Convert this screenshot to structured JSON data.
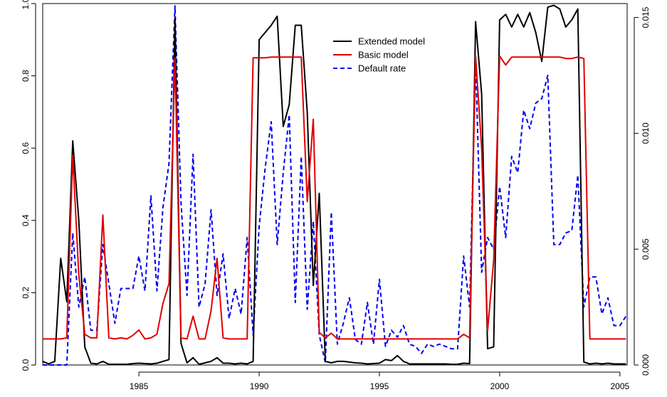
{
  "chart_data": {
    "type": "line",
    "x_axis": {
      "range": [
        1981,
        2005.3
      ],
      "ticks": [
        1985,
        1990,
        1995,
        2000,
        2005
      ]
    },
    "y_left": {
      "range": [
        0,
        1
      ],
      "ticks": [
        "0.0",
        "0.2",
        "0.4",
        "0.6",
        "0.8",
        "1.0"
      ],
      "tick_values": [
        0,
        0.2,
        0.4,
        0.6,
        0.8,
        1.0
      ]
    },
    "y_right": {
      "range": [
        0,
        0.0156
      ],
      "ticks": [
        "0.000",
        "0.005",
        "0.010",
        "0.015"
      ],
      "tick_values": [
        0,
        0.005,
        0.01,
        0.015
      ]
    },
    "legend": {
      "position": "top-center",
      "entries": [
        {
          "label": "Extended model",
          "color": "#000000",
          "dash": "solid"
        },
        {
          "label": "Basic model",
          "color": "#e00000",
          "dash": "solid"
        },
        {
          "label": "Default rate",
          "color": "#0000ee",
          "dash": "dashed"
        }
      ]
    },
    "series": [
      {
        "name": "Extended model",
        "axis": "left",
        "color": "#000000",
        "dash": "solid",
        "x": [
          1981.0,
          1981.25,
          1981.5,
          1981.75,
          1982.0,
          1982.25,
          1982.5,
          1982.75,
          1983.0,
          1983.25,
          1983.5,
          1983.75,
          1984.0,
          1984.25,
          1984.5,
          1984.75,
          1985.0,
          1985.25,
          1985.5,
          1985.75,
          1986.0,
          1986.25,
          1986.5,
          1986.75,
          1987.0,
          1987.25,
          1987.5,
          1987.75,
          1988.0,
          1988.25,
          1988.5,
          1988.75,
          1989.0,
          1989.25,
          1989.5,
          1989.75,
          1990.0,
          1990.25,
          1990.5,
          1990.75,
          1991.0,
          1991.25,
          1991.5,
          1991.75,
          1992.0,
          1992.25,
          1992.5,
          1992.75,
          1993.0,
          1993.25,
          1993.5,
          1993.75,
          1994.0,
          1994.25,
          1994.5,
          1994.75,
          1995.0,
          1995.25,
          1995.5,
          1995.75,
          1996.0,
          1996.25,
          1996.5,
          1996.75,
          1997.0,
          1997.25,
          1997.5,
          1997.75,
          1998.0,
          1998.25,
          1998.5,
          1998.75,
          1999.0,
          1999.25,
          1999.5,
          1999.75,
          2000.0,
          2000.25,
          2000.5,
          2000.75,
          2001.0,
          2001.25,
          2001.5,
          2001.75,
          2002.0,
          2002.25,
          2002.5,
          2002.75,
          2003.0,
          2003.25,
          2003.5,
          2003.75,
          2004.0,
          2004.25,
          2004.5,
          2004.75,
          2005.0,
          2005.25
        ],
        "values": [
          0.01,
          0.003,
          0.01,
          0.295,
          0.175,
          0.62,
          0.4,
          0.05,
          0.005,
          0.003,
          0.01,
          0.002,
          0.002,
          0.002,
          0.002,
          0.004,
          0.005,
          0.004,
          0.003,
          0.005,
          0.01,
          0.015,
          0.96,
          0.06,
          0.006,
          0.02,
          0.002,
          0.006,
          0.01,
          0.02,
          0.005,
          0.005,
          0.003,
          0.005,
          0.003,
          0.01,
          0.9,
          0.92,
          0.94,
          0.965,
          0.66,
          0.72,
          0.94,
          0.94,
          0.7,
          0.22,
          0.475,
          0.01,
          0.006,
          0.01,
          0.01,
          0.008,
          0.006,
          0.005,
          0.003,
          0.004,
          0.005,
          0.015,
          0.012,
          0.026,
          0.01,
          0.003,
          0.003,
          0.003,
          0.003,
          0.003,
          0.003,
          0.003,
          0.002,
          0.002,
          0.005,
          0.004,
          0.95,
          0.75,
          0.045,
          0.05,
          0.955,
          0.97,
          0.935,
          0.97,
          0.935,
          0.975,
          0.92,
          0.84,
          0.99,
          0.995,
          0.985,
          0.935,
          0.955,
          0.985,
          0.008,
          0.003,
          0.005,
          0.003,
          0.005,
          0.003,
          0.003,
          0.003
        ]
      },
      {
        "name": "Basic model",
        "axis": "left",
        "color": "#e00000",
        "dash": "solid",
        "x": [
          1981.0,
          1981.25,
          1981.5,
          1981.75,
          1982.0,
          1982.25,
          1982.5,
          1982.75,
          1983.0,
          1983.25,
          1983.5,
          1983.75,
          1984.0,
          1984.25,
          1984.5,
          1984.75,
          1985.0,
          1985.25,
          1985.5,
          1985.75,
          1986.0,
          1986.25,
          1986.5,
          1986.75,
          1987.0,
          1987.25,
          1987.5,
          1987.75,
          1988.0,
          1988.25,
          1988.5,
          1988.75,
          1989.0,
          1989.25,
          1989.5,
          1989.75,
          1990.0,
          1990.25,
          1990.5,
          1990.75,
          1991.0,
          1991.25,
          1991.5,
          1991.75,
          1992.0,
          1992.25,
          1992.5,
          1992.75,
          1993.0,
          1993.25,
          1993.5,
          1993.75,
          1994.0,
          1994.25,
          1994.5,
          1994.75,
          1995.0,
          1995.25,
          1995.5,
          1995.75,
          1996.0,
          1996.25,
          1996.5,
          1996.75,
          1997.0,
          1997.25,
          1997.5,
          1997.75,
          1998.0,
          1998.25,
          1998.5,
          1998.75,
          1999.0,
          1999.25,
          1999.5,
          1999.75,
          2000.0,
          2000.25,
          2000.5,
          2000.75,
          2001.0,
          2001.25,
          2001.5,
          2001.75,
          2002.0,
          2002.25,
          2002.5,
          2002.75,
          2003.0,
          2003.25,
          2003.5,
          2003.75,
          2004.0,
          2004.25,
          2004.5,
          2004.75,
          2005.0,
          2005.25
        ],
        "values": [
          0.072,
          0.072,
          0.072,
          0.072,
          0.075,
          0.58,
          0.25,
          0.085,
          0.075,
          0.075,
          0.415,
          0.075,
          0.072,
          0.075,
          0.072,
          0.082,
          0.097,
          0.072,
          0.075,
          0.085,
          0.17,
          0.225,
          0.85,
          0.075,
          0.072,
          0.135,
          0.072,
          0.072,
          0.15,
          0.295,
          0.075,
          0.072,
          0.072,
          0.072,
          0.072,
          0.85,
          0.85,
          0.85,
          0.852,
          0.852,
          0.852,
          0.852,
          0.852,
          0.852,
          0.452,
          0.68,
          0.09,
          0.075,
          0.088,
          0.072,
          0.072,
          0.072,
          0.072,
          0.072,
          0.072,
          0.072,
          0.072,
          0.072,
          0.072,
          0.072,
          0.072,
          0.072,
          0.072,
          0.072,
          0.072,
          0.072,
          0.072,
          0.072,
          0.072,
          0.072,
          0.085,
          0.075,
          0.855,
          0.6,
          0.095,
          0.29,
          0.855,
          0.83,
          0.852,
          0.852,
          0.852,
          0.852,
          0.852,
          0.852,
          0.852,
          0.852,
          0.852,
          0.848,
          0.848,
          0.852,
          0.848,
          0.072,
          0.072,
          0.072,
          0.072,
          0.072,
          0.072,
          0.072
        ]
      },
      {
        "name": "Default rate",
        "axis": "right",
        "color": "#0000ee",
        "dash": "dashed",
        "x": [
          1981.0,
          1981.25,
          1981.5,
          1981.75,
          1982.0,
          1982.25,
          1982.5,
          1982.75,
          1983.0,
          1983.25,
          1983.5,
          1983.75,
          1984.0,
          1984.25,
          1984.5,
          1984.75,
          1985.0,
          1985.25,
          1985.5,
          1985.75,
          1986.0,
          1986.25,
          1986.5,
          1986.75,
          1987.0,
          1987.25,
          1987.5,
          1987.75,
          1988.0,
          1988.25,
          1988.5,
          1988.75,
          1989.0,
          1989.25,
          1989.5,
          1989.75,
          1990.0,
          1990.25,
          1990.5,
          1990.75,
          1991.0,
          1991.25,
          1991.5,
          1991.75,
          1992.0,
          1992.25,
          1992.5,
          1992.75,
          1993.0,
          1993.25,
          1993.5,
          1993.75,
          1994.0,
          1994.25,
          1994.5,
          1994.75,
          1995.0,
          1995.25,
          1995.5,
          1995.75,
          1996.0,
          1996.25,
          1996.5,
          1996.75,
          1997.0,
          1997.25,
          1997.5,
          1997.75,
          1998.0,
          1998.25,
          1998.5,
          1998.75,
          1999.0,
          1999.25,
          1999.5,
          1999.75,
          2000.0,
          2000.25,
          2000.5,
          2000.75,
          2001.0,
          2001.25,
          2001.5,
          2001.75,
          2002.0,
          2002.25,
          2002.5,
          2002.75,
          2003.0,
          2003.25,
          2003.5,
          2003.75,
          2004.0,
          2004.25,
          2004.5,
          2004.75,
          2005.0,
          2005.25
        ],
        "values": [
          0.0,
          0.0,
          0.0,
          0.0,
          0.0,
          0.0057,
          0.0025,
          0.0038,
          0.0015,
          0.0015,
          0.0052,
          0.0035,
          0.0018,
          0.0033,
          0.0033,
          0.0033,
          0.0047,
          0.0032,
          0.0073,
          0.0032,
          0.0068,
          0.0087,
          0.0155,
          0.007,
          0.003,
          0.0091,
          0.0025,
          0.0035,
          0.0067,
          0.003,
          0.0048,
          0.002,
          0.0033,
          0.0022,
          0.0055,
          0.0013,
          0.006,
          0.0085,
          0.0105,
          0.0052,
          0.0083,
          0.0108,
          0.0027,
          0.009,
          0.0024,
          0.0062,
          0.0013,
          0.0001,
          0.0066,
          0.0009,
          0.0018,
          0.0029,
          0.0011,
          0.0009,
          0.0027,
          0.0009,
          0.0037,
          0.0008,
          0.0015,
          0.0012,
          0.0017,
          0.0009,
          0.0008,
          0.0005,
          0.0009,
          0.0008,
          0.0009,
          0.0008,
          0.0007,
          0.0007,
          0.0047,
          0.0025,
          0.0132,
          0.004,
          0.0055,
          0.005,
          0.0077,
          0.0055,
          0.009,
          0.0083,
          0.011,
          0.0102,
          0.0113,
          0.0115,
          0.0125,
          0.0052,
          0.0052,
          0.0057,
          0.0058,
          0.0082,
          0.0025,
          0.0038,
          0.0038,
          0.0022,
          0.0029,
          0.0017,
          0.0017,
          0.0021
        ]
      }
    ]
  }
}
